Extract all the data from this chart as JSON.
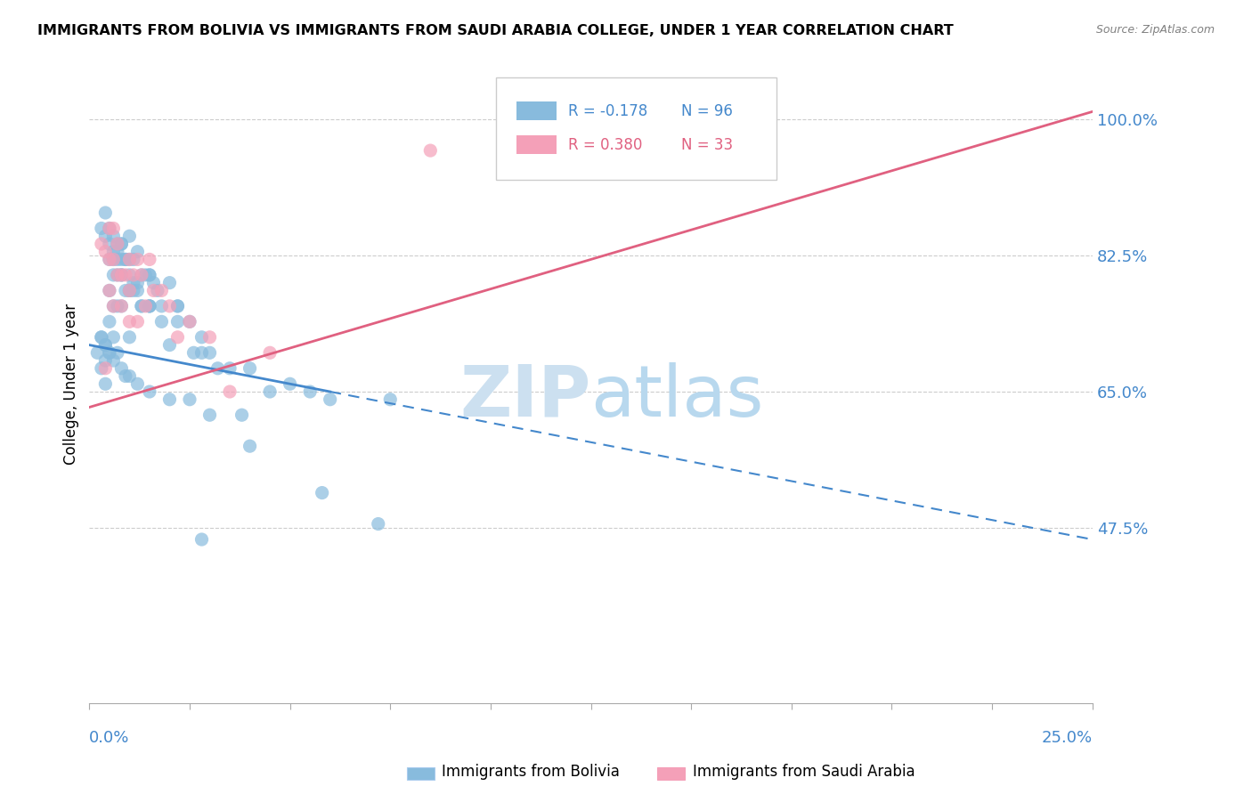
{
  "title": "IMMIGRANTS FROM BOLIVIA VS IMMIGRANTS FROM SAUDI ARABIA COLLEGE, UNDER 1 YEAR CORRELATION CHART",
  "source": "Source: ZipAtlas.com",
  "ylabel": "College, Under 1 year",
  "right_yticks": [
    47.5,
    65.0,
    82.5,
    100.0
  ],
  "right_ytick_labels": [
    "47.5%",
    "65.0%",
    "82.5%",
    "100.0%"
  ],
  "bolivia_color": "#88bbdd",
  "saudi_color": "#f4a0b8",
  "bolivia_line_color": "#4488cc",
  "saudi_line_color": "#e06080",
  "bolivia_R": -0.178,
  "bolivia_N": 96,
  "saudi_R": 0.38,
  "saudi_N": 33,
  "watermark_ZIP_color": "#cce0f0",
  "watermark_atlas_color": "#b8d8ee",
  "xmin": 0.0,
  "xmax": 25.0,
  "ymin": 25.0,
  "ymax": 107.0,
  "bolivia_line_x0": 0.0,
  "bolivia_line_y0": 71.0,
  "bolivia_line_slope": -1.0,
  "bolivia_solid_end_x": 6.0,
  "saudi_line_x0": 0.0,
  "saudi_line_y0": 63.0,
  "saudi_line_slope": 1.52,
  "bolivia_points_x": [
    0.2,
    0.3,
    0.3,
    0.4,
    0.4,
    0.4,
    0.5,
    0.5,
    0.5,
    0.5,
    0.6,
    0.6,
    0.6,
    0.6,
    0.7,
    0.7,
    0.7,
    0.8,
    0.8,
    0.8,
    0.9,
    0.9,
    1.0,
    1.0,
    1.0,
    1.0,
    1.1,
    1.1,
    1.2,
    1.2,
    1.3,
    1.3,
    1.4,
    1.5,
    1.5,
    1.6,
    1.7,
    1.8,
    2.0,
    2.0,
    2.2,
    2.5,
    2.8,
    3.0,
    3.5,
    4.0,
    5.0,
    5.5,
    6.0,
    7.5,
    0.3,
    0.4,
    0.5,
    0.6,
    0.7,
    0.7,
    0.8,
    0.8,
    0.9,
    1.0,
    1.0,
    1.1,
    1.2,
    1.3,
    1.5,
    1.8,
    2.2,
    2.6,
    3.2,
    4.5,
    0.3,
    0.4,
    0.5,
    0.6,
    0.7,
    0.8,
    0.9,
    1.0,
    1.2,
    1.5,
    2.0,
    2.5,
    3.0,
    4.0,
    1.5,
    2.2,
    2.8,
    3.8,
    5.8,
    7.2,
    0.4,
    0.5,
    0.6,
    0.8,
    1.5,
    2.8
  ],
  "bolivia_points_y": [
    70.0,
    68.0,
    72.0,
    69.0,
    71.0,
    66.0,
    82.0,
    78.0,
    74.0,
    70.0,
    82.0,
    80.0,
    76.0,
    72.0,
    83.0,
    80.0,
    76.0,
    84.0,
    80.0,
    76.0,
    82.0,
    78.0,
    85.0,
    82.0,
    78.0,
    72.0,
    82.0,
    78.0,
    83.0,
    79.0,
    80.0,
    76.0,
    80.0,
    80.0,
    76.0,
    79.0,
    78.0,
    76.0,
    79.0,
    71.0,
    76.0,
    74.0,
    72.0,
    70.0,
    68.0,
    68.0,
    66.0,
    65.0,
    64.0,
    64.0,
    86.0,
    85.0,
    84.0,
    83.0,
    84.0,
    82.0,
    82.0,
    80.0,
    82.0,
    80.0,
    78.0,
    79.0,
    78.0,
    76.0,
    76.0,
    74.0,
    74.0,
    70.0,
    68.0,
    65.0,
    72.0,
    71.0,
    70.0,
    69.0,
    70.0,
    68.0,
    67.0,
    67.0,
    66.0,
    65.0,
    64.0,
    64.0,
    62.0,
    58.0,
    80.0,
    76.0,
    70.0,
    62.0,
    52.0,
    48.0,
    88.0,
    86.0,
    85.0,
    84.0,
    76.0,
    46.0
  ],
  "saudi_points_x": [
    0.3,
    0.4,
    0.5,
    0.5,
    0.6,
    0.6,
    0.7,
    0.7,
    0.8,
    0.9,
    1.0,
    1.0,
    1.1,
    1.2,
    1.3,
    1.4,
    1.5,
    1.6,
    1.8,
    2.0,
    2.5,
    3.0,
    3.5,
    4.5,
    0.5,
    0.6,
    0.8,
    1.0,
    1.2,
    2.2,
    8.5,
    13.0,
    0.4
  ],
  "saudi_points_y": [
    84.0,
    83.0,
    86.0,
    82.0,
    86.0,
    82.0,
    84.0,
    80.0,
    80.0,
    80.0,
    82.0,
    78.0,
    80.0,
    82.0,
    80.0,
    76.0,
    82.0,
    78.0,
    78.0,
    76.0,
    74.0,
    72.0,
    65.0,
    70.0,
    78.0,
    76.0,
    76.0,
    74.0,
    74.0,
    72.0,
    96.0,
    98.0,
    68.0
  ]
}
